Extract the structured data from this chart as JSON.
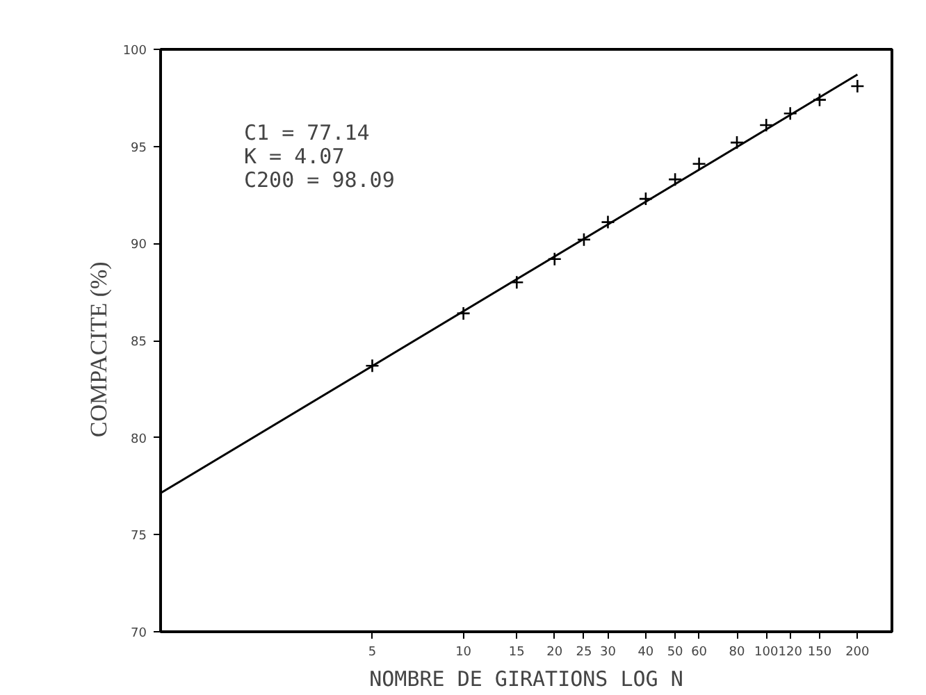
{
  "chart_data": {
    "type": "scatter",
    "xlabel": "NOMBRE DE GIRATIONS LOG N",
    "ylabel": "COMPACITE    (%)",
    "log": "x",
    "grid": false,
    "xlim": [
      1,
      260
    ],
    "xticks": [
      5,
      10,
      15,
      20,
      25,
      30,
      40,
      50,
      60,
      80,
      100,
      120,
      150,
      200
    ],
    "ylim": [
      70,
      100
    ],
    "yticks": [
      70,
      75,
      80,
      85,
      90,
      95,
      100
    ],
    "annotations": [
      "C1    = 77.14",
      "K     =  4.07",
      "C200 = 98.09"
    ],
    "series": [
      {
        "marker": "cross",
        "color": "#000000",
        "x": [
          5,
          10,
          15,
          20,
          25,
          30,
          40,
          50,
          60,
          80,
          100,
          120,
          150,
          200
        ],
        "values": [
          83.7,
          86.4,
          88.0,
          89.2,
          90.2,
          91.1,
          92.3,
          93.3,
          94.1,
          95.2,
          96.1,
          96.7,
          97.4,
          98.1
        ]
      },
      {
        "type": "line",
        "line_style": "solid",
        "color": "#000000",
        "x": [
          1,
          200
        ],
        "values": [
          77.14,
          98.7
        ]
      }
    ]
  }
}
